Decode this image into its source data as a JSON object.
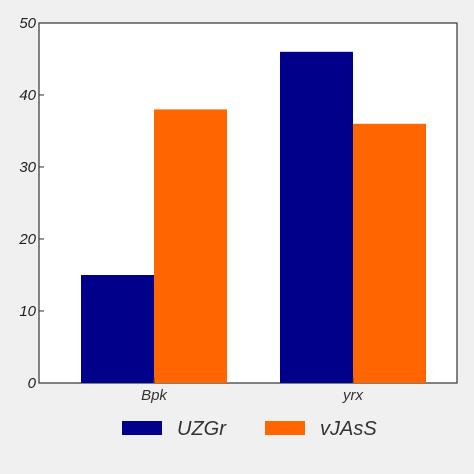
{
  "chart_data": {
    "type": "bar",
    "categories": [
      "Bpk",
      "yrx"
    ],
    "series": [
      {
        "name": "UZGr",
        "values": [
          15,
          46
        ],
        "color": "#00008b"
      },
      {
        "name": "vJAsS",
        "values": [
          38,
          36
        ],
        "color": "#ff6600"
      }
    ],
    "ylim": [
      0,
      50
    ],
    "yticks": [
      0,
      10,
      20,
      30,
      40,
      50
    ],
    "grid": false,
    "legend": "bottom-center",
    "title": "",
    "xlabel": "",
    "ylabel": ""
  },
  "colors": {
    "background": "#f0f0f0",
    "plot_background": "#ffffff",
    "axis": "#333333"
  }
}
